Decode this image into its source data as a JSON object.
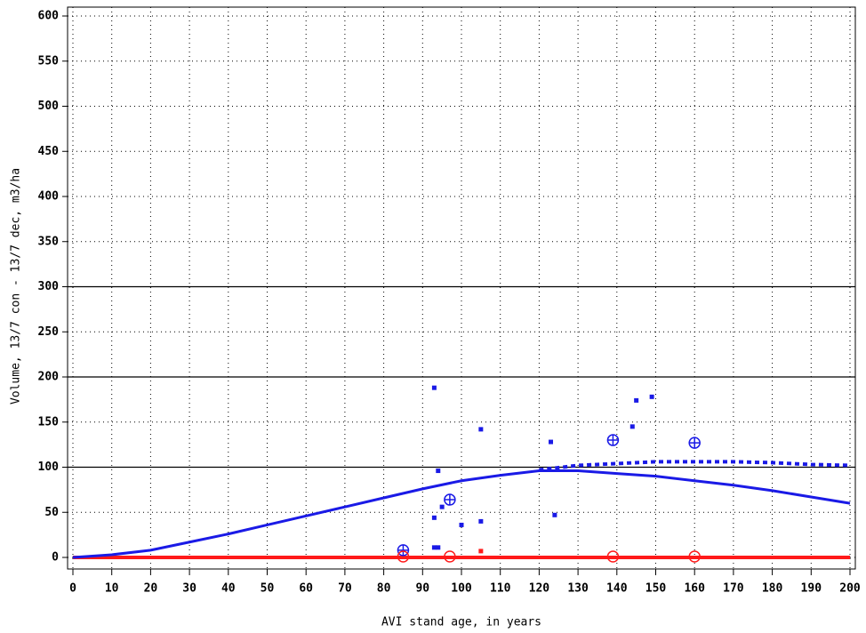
{
  "chart_data": {
    "type": "line",
    "xlabel": "AVI stand age, in years",
    "ylabel": "Volume, 13/7 con - 13/7 dec, m3/ha",
    "xlim": [
      0,
      200
    ],
    "ylim": [
      0,
      600
    ],
    "xticks": [
      0,
      10,
      20,
      30,
      40,
      50,
      60,
      70,
      80,
      90,
      100,
      110,
      120,
      130,
      140,
      150,
      160,
      170,
      180,
      190,
      200
    ],
    "yticks": [
      0,
      50,
      100,
      150,
      200,
      250,
      300,
      350,
      400,
      450,
      500,
      550,
      600
    ],
    "grid": true,
    "hlines": [
      100,
      200,
      300
    ],
    "series": [
      {
        "color": "#ff1a1a",
        "marker": "line",
        "width": 4,
        "x": [
          0,
          200
        ],
        "y": [
          0,
          0
        ]
      },
      {
        "color": "#1a1ae6",
        "marker": "line",
        "width": 3,
        "x": [
          0,
          10,
          20,
          30,
          40,
          50,
          60,
          70,
          80,
          90,
          100,
          110,
          120,
          130,
          140,
          150,
          160,
          170,
          180,
          190,
          200
        ],
        "y": [
          0,
          3,
          8,
          17,
          26,
          36,
          46,
          56,
          66,
          76,
          85,
          91,
          96,
          96,
          93,
          90,
          85,
          80,
          74,
          67,
          60
        ]
      },
      {
        "color": "#1a1ae6",
        "marker": "dotted",
        "width": 4,
        "x": [
          120,
          130,
          140,
          150,
          160,
          170,
          180,
          190,
          200
        ],
        "y": [
          97,
          102,
          104,
          106,
          106,
          106,
          105,
          103,
          102
        ]
      },
      {
        "color": "#1a1ae6",
        "marker": "square",
        "x": [
          93,
          94,
          95,
          93,
          93,
          94,
          100,
          105,
          105,
          123,
          124,
          144,
          145,
          149
        ],
        "y": [
          188,
          96,
          56,
          44,
          11,
          11,
          36,
          142,
          40,
          128,
          47,
          145,
          174,
          178
        ]
      },
      {
        "color": "#ff1a1a",
        "marker": "square",
        "x": [
          105
        ],
        "y": [
          7
        ]
      },
      {
        "color": "#1a1ae6",
        "marker": "circle-plus",
        "x": [
          85,
          97,
          139,
          160
        ],
        "y": [
          8,
          64,
          130,
          127
        ]
      },
      {
        "color": "#ff1a1a",
        "marker": "circle",
        "x": [
          85,
          97,
          139,
          160
        ],
        "y": [
          1,
          1,
          1,
          1
        ]
      }
    ]
  }
}
